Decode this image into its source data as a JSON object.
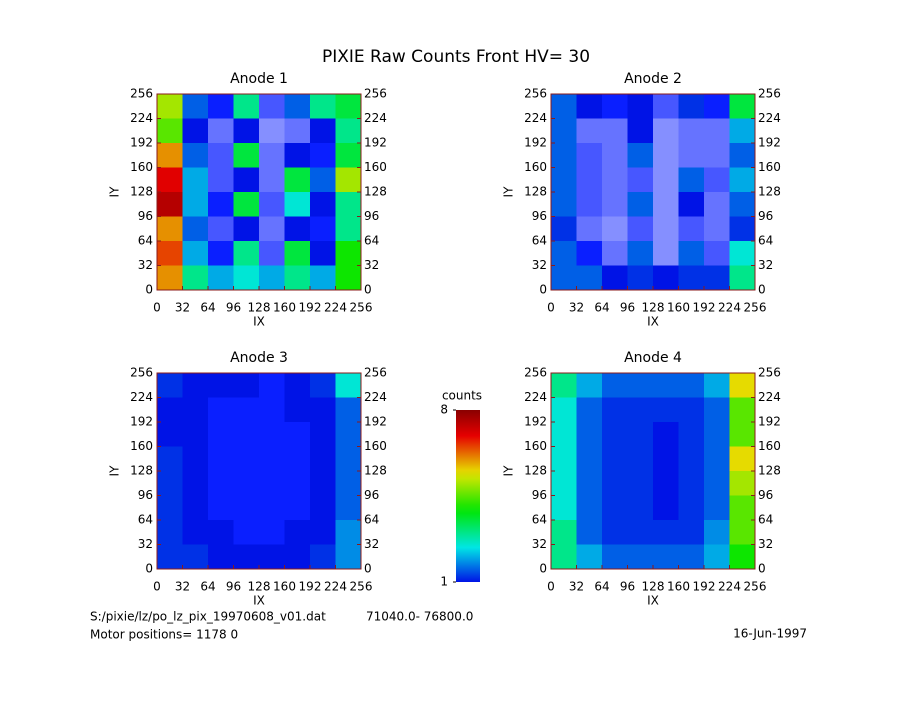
{
  "title": "PIXIE Raw Counts Front HV= 30",
  "colorbar": {
    "label": "counts",
    "lim": [
      1,
      8
    ],
    "ticks": [
      1,
      8
    ]
  },
  "footer": {
    "file": "S:/pixie/lz/po_lz_pix_19970608_v01.dat",
    "range": "71040.0- 76800.0",
    "motor": "Motor positions= 1178 0",
    "date": "16-Jun-1997"
  },
  "chart_data": [
    {
      "type": "heatmap",
      "title": "Anode 1",
      "xlabel": "IX",
      "ylabel": "IY",
      "xlim": [
        0,
        256
      ],
      "ylim": [
        0,
        256
      ],
      "xticks": [
        0,
        32,
        64,
        96,
        128,
        160,
        192,
        224,
        256
      ],
      "yticks": [
        0,
        32,
        64,
        96,
        128,
        160,
        192,
        224,
        256
      ],
      "values": [
        [
          5,
          1.5,
          0.8,
          3,
          0.6,
          1.5,
          3,
          3.5
        ],
        [
          4.5,
          1,
          0.5,
          1,
          0.4,
          0.5,
          1,
          3
        ],
        [
          6,
          1.5,
          0.6,
          3.5,
          0.5,
          1,
          0.8,
          3.5
        ],
        [
          7,
          2,
          0.6,
          1,
          0.5,
          3.5,
          1.5,
          5
        ],
        [
          7.5,
          2,
          0.8,
          3.5,
          0.6,
          2.5,
          1,
          3
        ],
        [
          6,
          1.5,
          0.6,
          1,
          0.5,
          1,
          0.8,
          3
        ],
        [
          6.5,
          2,
          0.8,
          3,
          0.6,
          3.5,
          1,
          4
        ],
        [
          6,
          3,
          2,
          2.5,
          2,
          3,
          2,
          4
        ]
      ]
    },
    {
      "type": "heatmap",
      "title": "Anode 2",
      "xlabel": "IX",
      "ylabel": "IY",
      "xlim": [
        0,
        256
      ],
      "ylim": [
        0,
        256
      ],
      "xticks": [
        0,
        32,
        64,
        96,
        128,
        160,
        192,
        224,
        256
      ],
      "yticks": [
        0,
        32,
        64,
        96,
        128,
        160,
        192,
        224,
        256
      ],
      "values": [
        [
          1.5,
          1,
          0.8,
          1,
          0.6,
          1.2,
          0.8,
          3.5
        ],
        [
          1.5,
          0.5,
          0.5,
          1,
          0.4,
          0.5,
          0.5,
          2
        ],
        [
          1.5,
          0.6,
          0.5,
          1.5,
          0.4,
          0.5,
          0.5,
          1.5
        ],
        [
          1.5,
          0.6,
          0.5,
          0.6,
          0.4,
          1.5,
          0.6,
          2
        ],
        [
          1.5,
          0.6,
          0.5,
          1.5,
          0.4,
          1,
          0.5,
          1.5
        ],
        [
          1.2,
          0.5,
          0.4,
          0.6,
          0.4,
          0.6,
          0.5,
          1.2
        ],
        [
          1.5,
          0.8,
          0.5,
          1.5,
          0.4,
          1.5,
          0.6,
          2.5
        ],
        [
          1.5,
          1.5,
          1,
          1.2,
          1,
          1.2,
          1.2,
          3
        ]
      ]
    },
    {
      "type": "heatmap",
      "title": "Anode 3",
      "xlabel": "IX",
      "ylabel": "IY",
      "xlim": [
        0,
        256
      ],
      "ylim": [
        0,
        256
      ],
      "xticks": [
        0,
        32,
        64,
        96,
        128,
        160,
        192,
        224,
        256
      ],
      "yticks": [
        0,
        32,
        64,
        96,
        128,
        160,
        192,
        224,
        256
      ],
      "values": [
        [
          1.2,
          1,
          1,
          1,
          0.8,
          1,
          1.2,
          2.5
        ],
        [
          1,
          1,
          0.8,
          0.8,
          0.8,
          1,
          1,
          1.5
        ],
        [
          1,
          1,
          0.8,
          0.8,
          0.8,
          0.8,
          1,
          1.5
        ],
        [
          1.2,
          1,
          0.8,
          0.8,
          0.8,
          0.8,
          1,
          1.5
        ],
        [
          1.2,
          1,
          0.8,
          0.8,
          0.8,
          0.8,
          1,
          1.5
        ],
        [
          1.2,
          1,
          0.8,
          0.8,
          0.8,
          0.8,
          1,
          1.5
        ],
        [
          1.2,
          1,
          1,
          0.8,
          0.8,
          1,
          1,
          1.8
        ],
        [
          1.2,
          1.2,
          1,
          1,
          1,
          1,
          1.2,
          1.8
        ]
      ]
    },
    {
      "type": "heatmap",
      "title": "Anode 4",
      "xlabel": "IX",
      "ylabel": "IY",
      "xlim": [
        0,
        256
      ],
      "ylim": [
        0,
        256
      ],
      "xticks": [
        0,
        32,
        64,
        96,
        128,
        160,
        192,
        224,
        256
      ],
      "yticks": [
        0,
        32,
        64,
        96,
        128,
        160,
        192,
        224,
        256
      ],
      "values": [
        [
          3,
          2,
          1.5,
          1.5,
          1.5,
          1.5,
          2,
          5.5
        ],
        [
          2.5,
          1.5,
          1.2,
          1.2,
          1.2,
          1.2,
          1.5,
          4.5
        ],
        [
          2.5,
          1.5,
          1.2,
          1.2,
          1,
          1.2,
          1.5,
          4.5
        ],
        [
          2.5,
          1.5,
          1.2,
          1.2,
          1,
          1.2,
          1.5,
          5.5
        ],
        [
          2.5,
          1.5,
          1.2,
          1.2,
          1,
          1.2,
          1.5,
          5
        ],
        [
          2.5,
          1.5,
          1.2,
          1.2,
          1,
          1.2,
          1.5,
          4.5
        ],
        [
          3,
          1.5,
          1.2,
          1.2,
          1.2,
          1.2,
          1.8,
          4.5
        ],
        [
          3,
          2,
          1.5,
          1.5,
          1.5,
          1.5,
          2,
          4
        ]
      ]
    }
  ]
}
